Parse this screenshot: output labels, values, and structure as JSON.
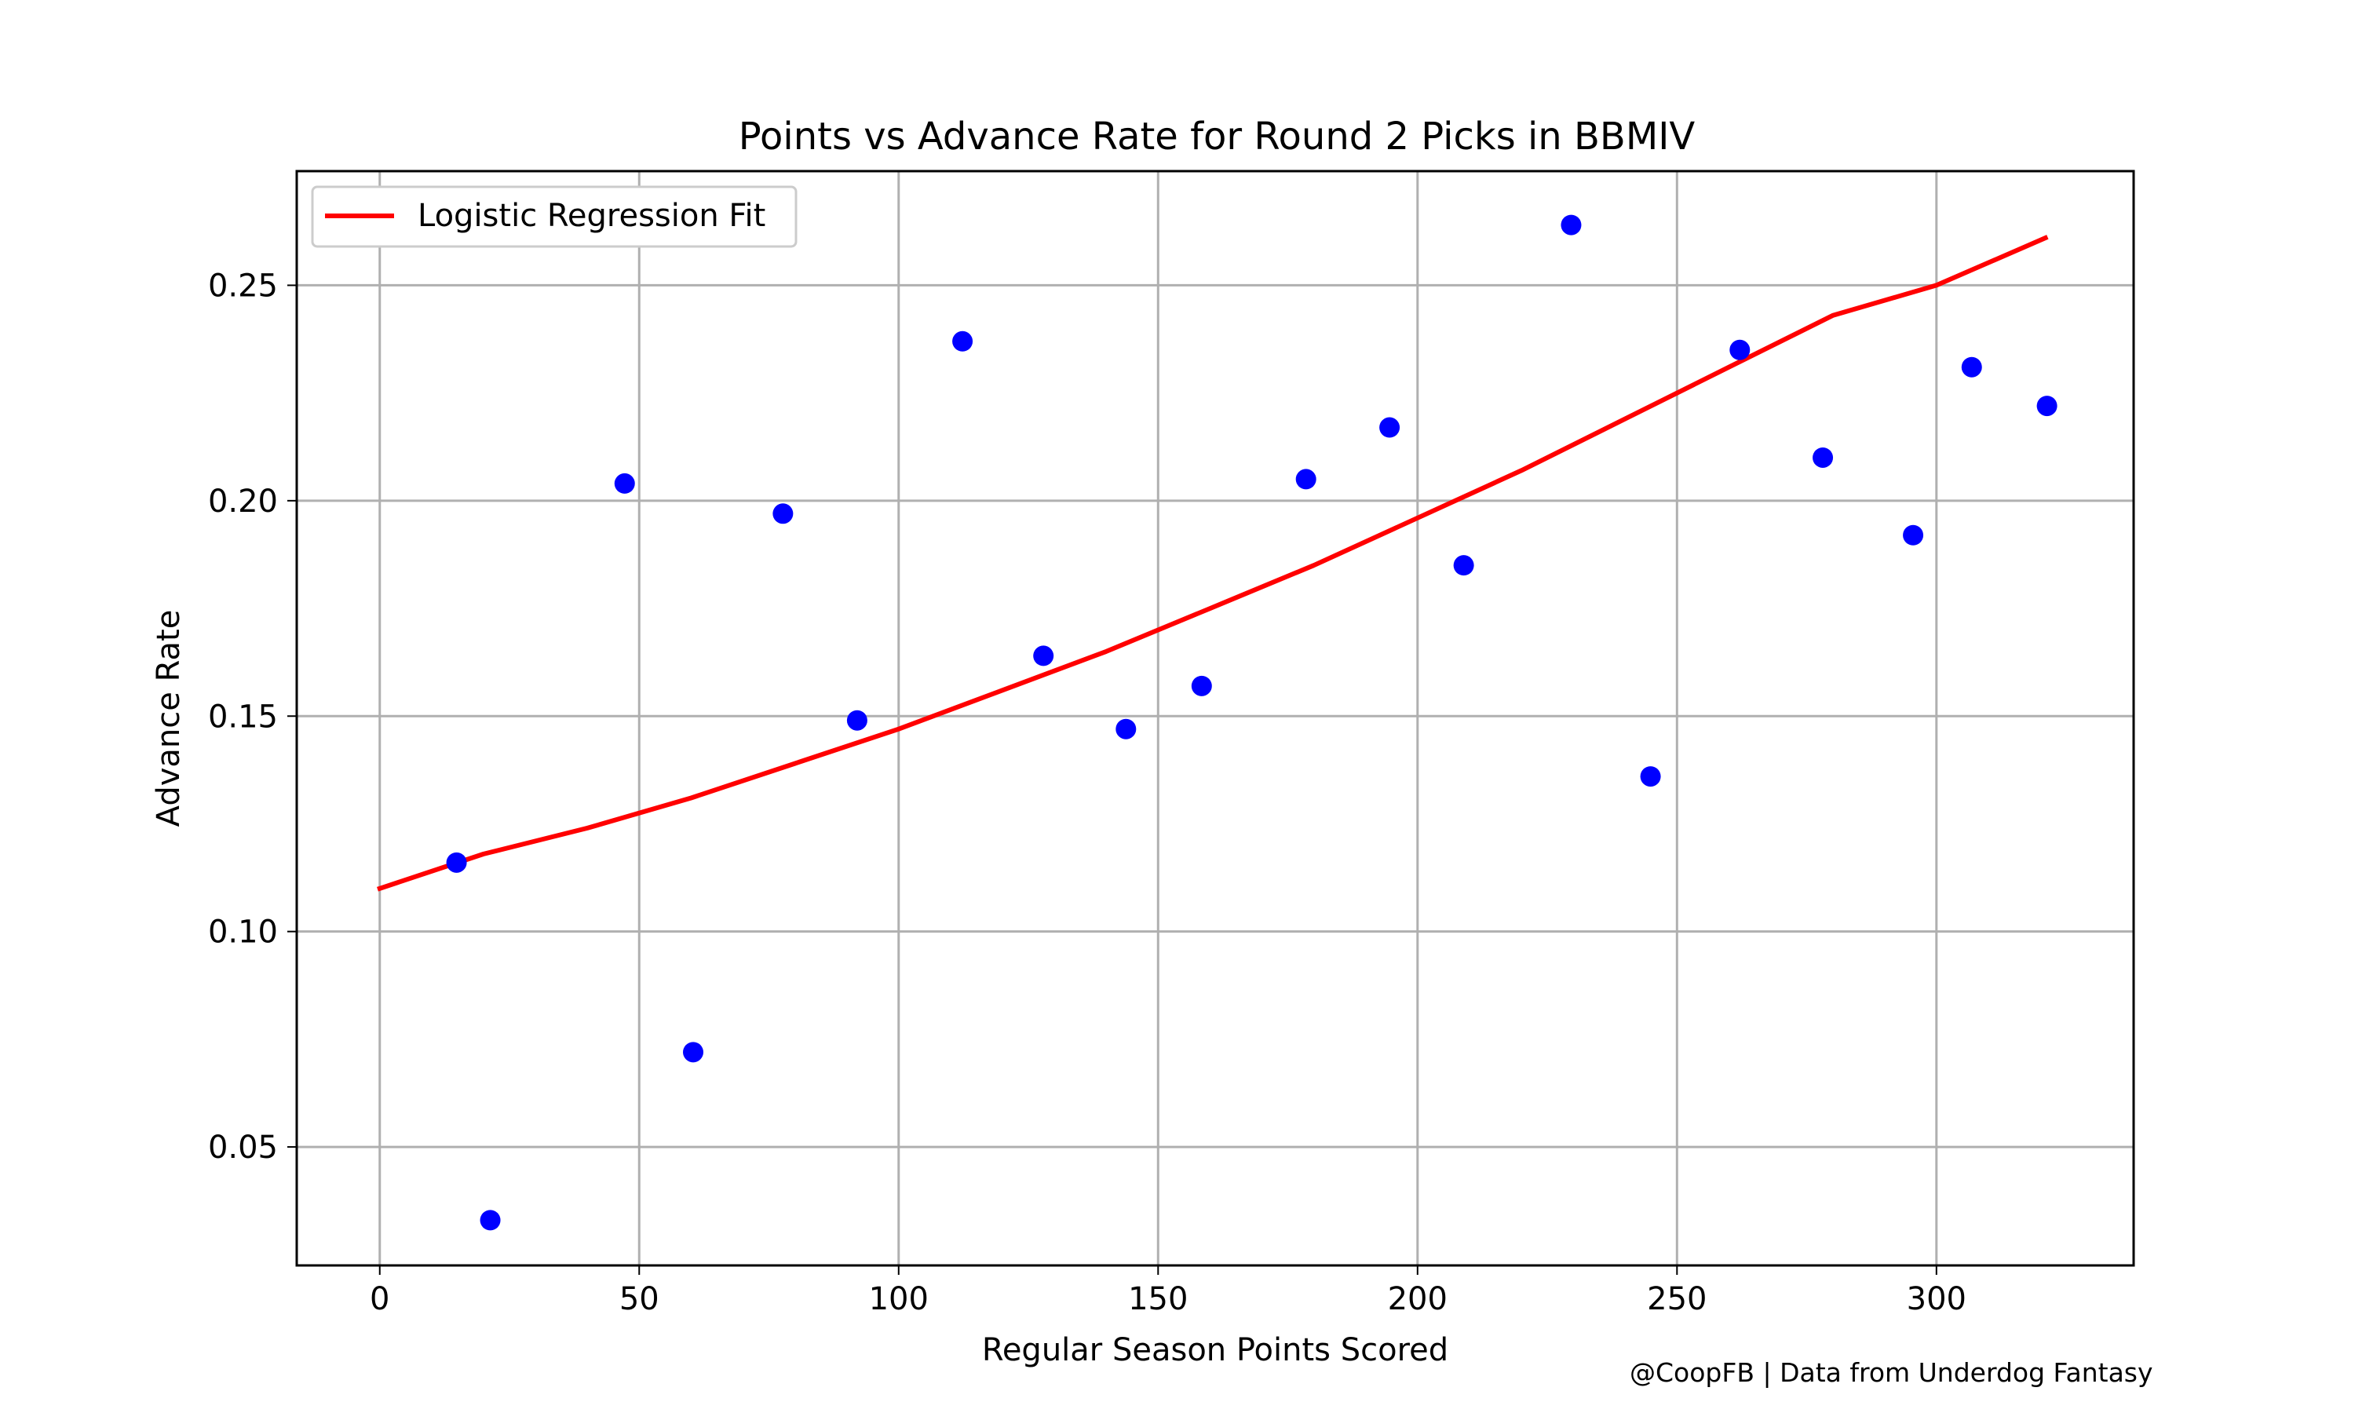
{
  "colors": {
    "points": "#0000ff",
    "fit_line": "#ff0000",
    "grid": "#b0b0b0",
    "background": "#ffffff"
  },
  "credit": "@CoopFB | Data from Underdog Fantasy",
  "chart_data": {
    "type": "scatter",
    "title": "Points vs Advance Rate for Round 2 Picks in BBMIV",
    "xlabel": "Regular Season Points Scored",
    "ylabel": "Advance Rate",
    "xlim": [
      -16,
      338
    ],
    "ylim": [
      0.0225,
      0.2765
    ],
    "xticks": [
      0,
      50,
      100,
      150,
      200,
      250,
      300
    ],
    "xtick_labels": [
      "0",
      "50",
      "100",
      "150",
      "200",
      "250",
      "300"
    ],
    "yticks": [
      0.05,
      0.1,
      0.15,
      0.2,
      0.25
    ],
    "ytick_labels": [
      "0.05",
      "0.10",
      "0.15",
      "0.20",
      "0.25"
    ],
    "grid": true,
    "legend_position": "top-left",
    "series": [
      {
        "name": "",
        "kind": "scatter",
        "points": [
          {
            "x": 14.8,
            "y": 0.116
          },
          {
            "x": 21.3,
            "y": 0.033
          },
          {
            "x": 47.2,
            "y": 0.204
          },
          {
            "x": 60.4,
            "y": 0.072
          },
          {
            "x": 77.7,
            "y": 0.197
          },
          {
            "x": 92.0,
            "y": 0.149
          },
          {
            "x": 112.3,
            "y": 0.237
          },
          {
            "x": 127.9,
            "y": 0.164
          },
          {
            "x": 143.8,
            "y": 0.147
          },
          {
            "x": 158.4,
            "y": 0.157
          },
          {
            "x": 178.5,
            "y": 0.205
          },
          {
            "x": 194.6,
            "y": 0.217
          },
          {
            "x": 208.9,
            "y": 0.185
          },
          {
            "x": 229.6,
            "y": 0.264
          },
          {
            "x": 244.9,
            "y": 0.136
          },
          {
            "x": 262.1,
            "y": 0.235
          },
          {
            "x": 278.1,
            "y": 0.21
          },
          {
            "x": 295.5,
            "y": 0.192
          },
          {
            "x": 306.8,
            "y": 0.231
          },
          {
            "x": 321.3,
            "y": 0.222
          }
        ]
      },
      {
        "name": "Logistic Regression Fit",
        "kind": "line",
        "points": [
          {
            "x": 0,
            "y": 0.11
          },
          {
            "x": 20,
            "y": 0.118
          },
          {
            "x": 40,
            "y": 0.124
          },
          {
            "x": 60,
            "y": 0.131
          },
          {
            "x": 80,
            "y": 0.139
          },
          {
            "x": 100,
            "y": 0.147
          },
          {
            "x": 120,
            "y": 0.156
          },
          {
            "x": 140,
            "y": 0.165
          },
          {
            "x": 160,
            "y": 0.175
          },
          {
            "x": 180,
            "y": 0.185
          },
          {
            "x": 200,
            "y": 0.196
          },
          {
            "x": 220,
            "y": 0.207
          },
          {
            "x": 240,
            "y": 0.219
          },
          {
            "x": 260,
            "y": 0.231
          },
          {
            "x": 280,
            "y": 0.243
          },
          {
            "x": 300,
            "y": 0.25
          },
          {
            "x": 321,
            "y": 0.261
          }
        ]
      }
    ]
  }
}
